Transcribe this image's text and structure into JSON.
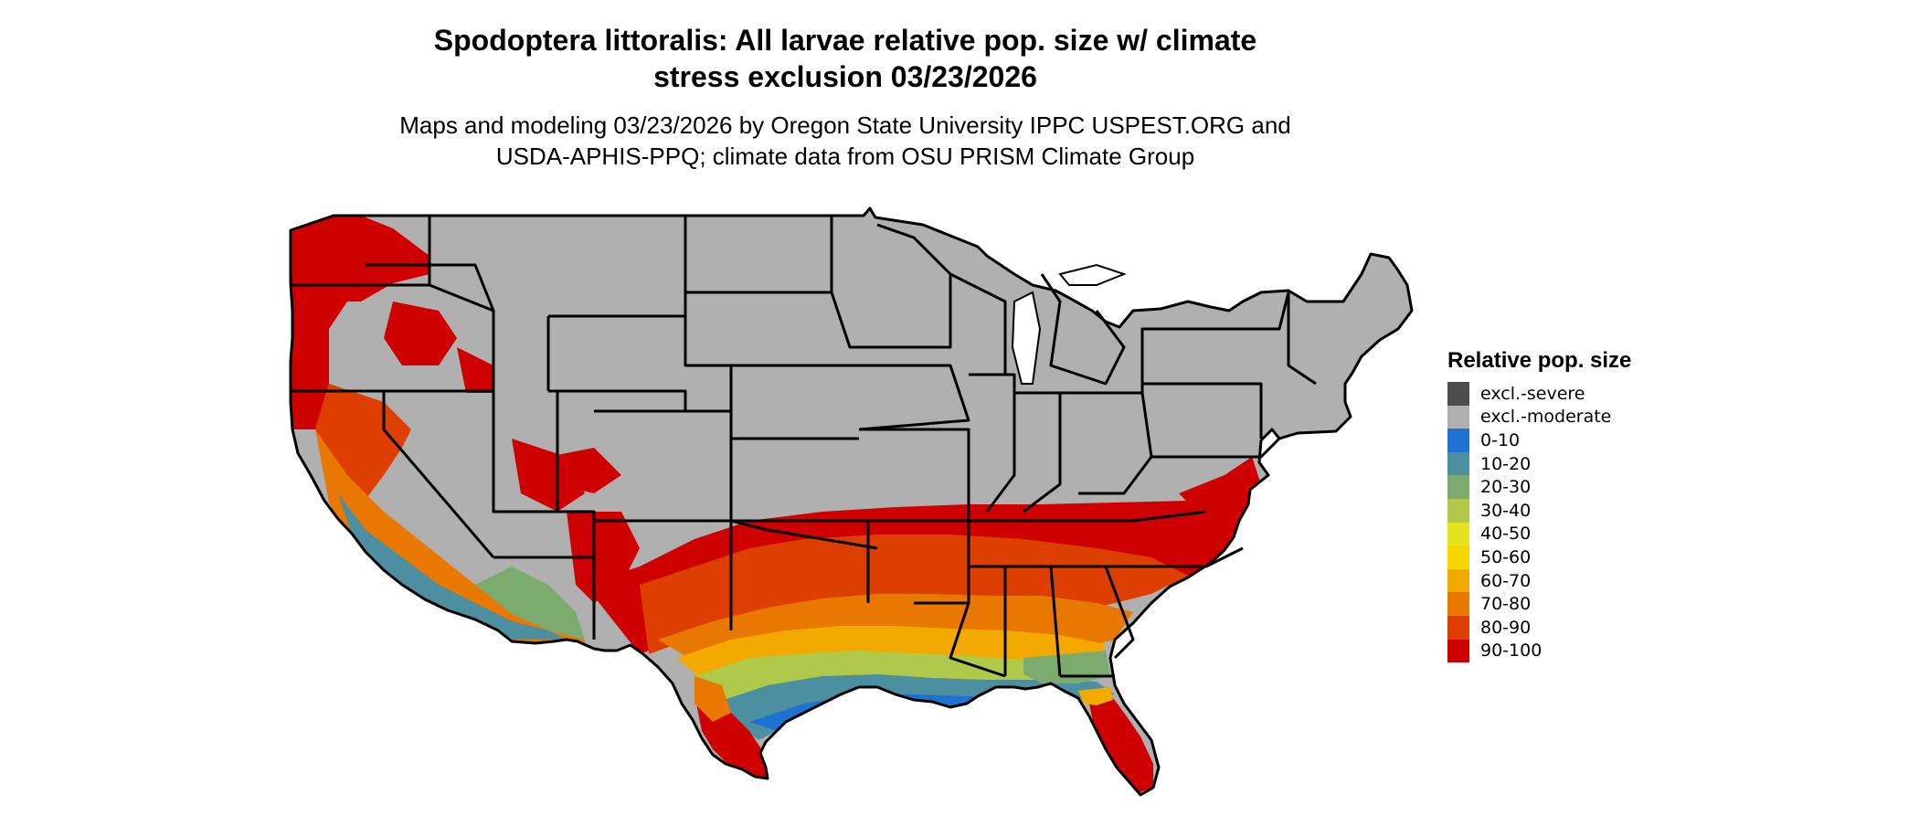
{
  "title_lines": [
    "Spodoptera littoralis: All larvae relative pop. size w/ climate",
    "stress exclusion 03/23/2026"
  ],
  "subtitle_lines": [
    "Maps and modeling 03/23/2026 by Oregon State University IPPC USPEST.ORG and",
    "USDA-APHIS-PPQ; climate data from OSU PRISM Climate Group"
  ],
  "legend": {
    "title": "Relative pop. size",
    "items": [
      {
        "label": "excl.-severe",
        "color": "#4d4d4d"
      },
      {
        "label": "excl.-moderate",
        "color": "#b0b0b0"
      },
      {
        "label": "0-10",
        "color": "#1e73d2"
      },
      {
        "label": "10-20",
        "color": "#4b8fa0"
      },
      {
        "label": "20-30",
        "color": "#7cab70"
      },
      {
        "label": "30-40",
        "color": "#b0c94a"
      },
      {
        "label": "40-50",
        "color": "#e5e21e"
      },
      {
        "label": "50-60",
        "color": "#f7d700"
      },
      {
        "label": "60-70",
        "color": "#f2a900"
      },
      {
        "label": "70-80",
        "color": "#e87800"
      },
      {
        "label": "80-90",
        "color": "#dc3f00"
      },
      {
        "label": "90-100",
        "color": "#cf0000"
      }
    ]
  },
  "map": {
    "region": "Contiguous United States",
    "background_class": "excl.-moderate",
    "border_color": "#000000"
  }
}
